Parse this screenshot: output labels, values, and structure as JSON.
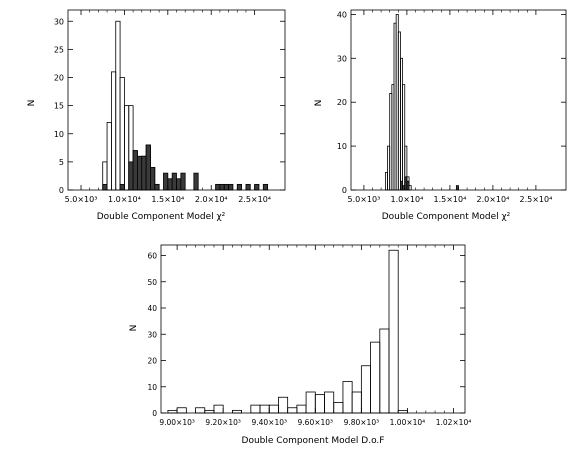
{
  "chart_data": [
    {
      "type": "bar",
      "xlabel": "Double Component Model χ²",
      "ylabel": "N",
      "xlim": [
        3500,
        28500
      ],
      "ylim": [
        0,
        32
      ],
      "xticks": [
        {
          "value": 5000,
          "label": "5.0×10³"
        },
        {
          "value": 10000,
          "label": "1.0×10⁴"
        },
        {
          "value": 15000,
          "label": "1.5×10⁴"
        },
        {
          "value": 20000,
          "label": "2.0×10⁴"
        },
        {
          "value": 25000,
          "label": "2.5×10⁴"
        }
      ],
      "yticks": [
        0,
        5,
        10,
        15,
        20,
        25,
        30
      ],
      "bin_width": 500,
      "series": [
        {
          "style": "open",
          "bins": [
            [
              7500,
              5
            ],
            [
              8000,
              12
            ],
            [
              8500,
              21
            ],
            [
              9000,
              30
            ],
            [
              9500,
              20
            ],
            [
              10000,
              15
            ],
            [
              10500,
              15
            ],
            [
              11000,
              7
            ],
            [
              11500,
              5
            ],
            [
              12000,
              6
            ],
            [
              12500,
              8
            ],
            [
              13000,
              4
            ],
            [
              13500,
              1
            ]
          ]
        },
        {
          "style": "filled",
          "bins": [
            [
              7500,
              1
            ],
            [
              9500,
              1
            ],
            [
              10500,
              5
            ],
            [
              11000,
              7
            ],
            [
              11500,
              6
            ],
            [
              12000,
              6
            ],
            [
              12500,
              8
            ],
            [
              13000,
              4
            ],
            [
              13500,
              1
            ],
            [
              14500,
              3
            ],
            [
              15000,
              2
            ],
            [
              15500,
              3
            ],
            [
              16000,
              2
            ],
            [
              16500,
              3
            ],
            [
              18000,
              3
            ],
            [
              20500,
              1
            ],
            [
              21000,
              1
            ],
            [
              21500,
              1
            ],
            [
              22000,
              1
            ],
            [
              23000,
              1
            ],
            [
              24000,
              1
            ],
            [
              25000,
              1
            ],
            [
              26000,
              1
            ]
          ]
        }
      ]
    },
    {
      "type": "bar",
      "xlabel": "Double Component Model χ²",
      "ylabel": "N",
      "xlim": [
        3500,
        28500
      ],
      "ylim": [
        0,
        41
      ],
      "xticks": [
        {
          "value": 5000,
          "label": "5.0×10³"
        },
        {
          "value": 10000,
          "label": "1.0×10⁴"
        },
        {
          "value": 15000,
          "label": "1.5×10⁴"
        },
        {
          "value": 20000,
          "label": "2.0×10⁴"
        },
        {
          "value": 25000,
          "label": "2.5×10⁴"
        }
      ],
      "yticks": [
        0,
        10,
        20,
        30,
        40
      ],
      "bin_width": 250,
      "series": [
        {
          "style": "open",
          "bins": [
            [
              7500,
              4
            ],
            [
              7750,
              10
            ],
            [
              8000,
              22
            ],
            [
              8250,
              24
            ],
            [
              8500,
              38
            ],
            [
              8750,
              40
            ],
            [
              9000,
              36
            ],
            [
              9250,
              30
            ],
            [
              9500,
              24
            ],
            [
              9750,
              10
            ],
            [
              10000,
              3
            ],
            [
              10250,
              1
            ]
          ]
        },
        {
          "style": "filled",
          "bins": [
            [
              9250,
              2
            ],
            [
              9500,
              1
            ],
            [
              9750,
              3
            ],
            [
              10000,
              2
            ],
            [
              15750,
              1
            ]
          ]
        }
      ]
    },
    {
      "type": "bar",
      "xlabel": "Double Component Model D.o.F",
      "ylabel": "N",
      "xlim": [
        8930,
        10250
      ],
      "ylim": [
        0,
        64
      ],
      "xticks": [
        {
          "value": 9000,
          "label": "9.00×10³"
        },
        {
          "value": 9200,
          "label": "9.20×10³"
        },
        {
          "value": 9400,
          "label": "9.40×10³"
        },
        {
          "value": 9600,
          "label": "9.60×10³"
        },
        {
          "value": 9800,
          "label": "9.80×10³"
        },
        {
          "value": 10000,
          "label": "1.00×10⁴"
        },
        {
          "value": 10200,
          "label": "1.02×10⁴"
        }
      ],
      "yticks": [
        0,
        10,
        20,
        30,
        40,
        50,
        60
      ],
      "bin_width": 40,
      "series": [
        {
          "style": "open",
          "bins": [
            [
              8960,
              1
            ],
            [
              9000,
              2
            ],
            [
              9080,
              2
            ],
            [
              9120,
              1
            ],
            [
              9160,
              3
            ],
            [
              9240,
              1
            ],
            [
              9320,
              3
            ],
            [
              9360,
              3
            ],
            [
              9400,
              3
            ],
            [
              9440,
              6
            ],
            [
              9480,
              2
            ],
            [
              9520,
              3
            ],
            [
              9560,
              8
            ],
            [
              9600,
              7
            ],
            [
              9640,
              8
            ],
            [
              9680,
              4
            ],
            [
              9720,
              12
            ],
            [
              9760,
              8
            ],
            [
              9800,
              18
            ],
            [
              9840,
              27
            ],
            [
              9880,
              32
            ],
            [
              9920,
              62
            ],
            [
              9960,
              1
            ]
          ]
        }
      ]
    }
  ]
}
